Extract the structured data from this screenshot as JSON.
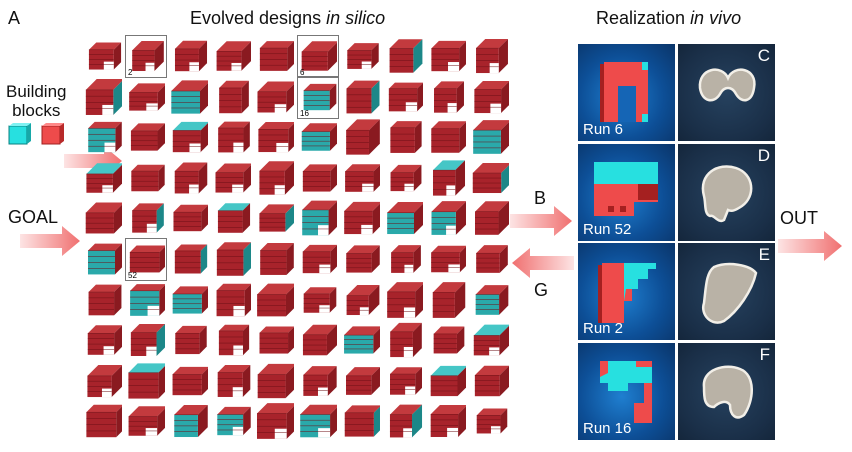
{
  "panel_labels": {
    "a": "A",
    "b": "B",
    "g": "G",
    "c": "C",
    "d": "D",
    "e": "E",
    "f": "F"
  },
  "title_left": {
    "text": "Evolved designs ",
    "italic": "in silico"
  },
  "title_right": {
    "text": "Realization ",
    "italic": "in vivo"
  },
  "building_blocks": {
    "line1": "Building",
    "line2": "blocks"
  },
  "goal_label": "GOAL",
  "out_label": "OUT",
  "colors": {
    "red_block": "#ee4b4b",
    "cyan_block": "#27e0e0",
    "voxel_red": "#a8232b",
    "voxel_cyan": "#29a7a8",
    "arrow": "#f28080"
  },
  "grid": {
    "rows": 10,
    "columns": 10,
    "highlighted": [
      {
        "row": 0,
        "col": 1,
        "label": "2"
      },
      {
        "row": 0,
        "col": 5,
        "label": "6"
      },
      {
        "row": 1,
        "col": 5,
        "label": "16"
      },
      {
        "row": 5,
        "col": 1,
        "label": "52"
      }
    ]
  },
  "realizations": [
    {
      "run": "Run 6",
      "letter": "C"
    },
    {
      "run": "Run 52",
      "letter": "D"
    },
    {
      "run": "Run 2",
      "letter": "E"
    },
    {
      "run": "Run 16",
      "letter": "F"
    }
  ]
}
